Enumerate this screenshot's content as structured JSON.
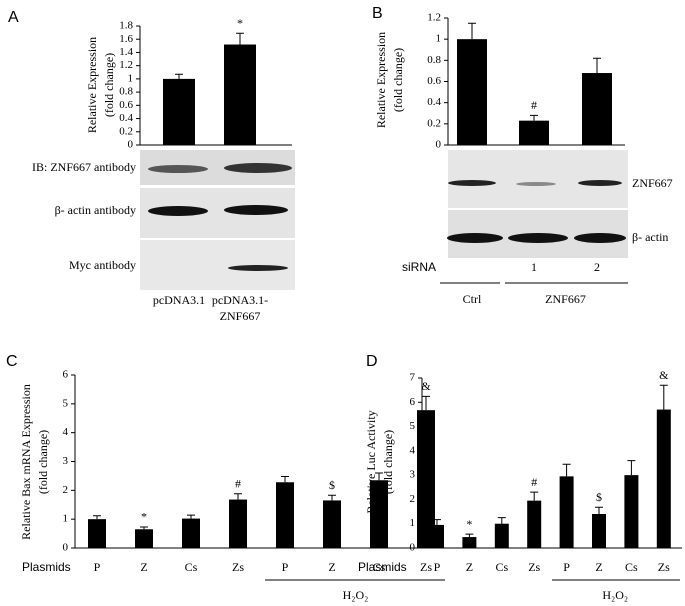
{
  "chart_data": [
    {
      "type": "bar",
      "panel_label": "A",
      "ylabel": [
        "Relative Expression",
        "(fold change)"
      ],
      "categories": [
        "pcDNA3.1",
        "pcDNA3.1-ZNF667"
      ],
      "values": [
        1.0,
        1.52
      ],
      "errors": [
        0.07,
        0.17
      ],
      "ylim": [
        0,
        1.8
      ],
      "yticks": [
        0,
        0.2,
        0.4,
        0.6,
        0.8,
        1,
        1.2,
        1.4,
        1.6,
        1.8
      ],
      "color": "#000000",
      "annotations": [
        {
          "index": 1,
          "text": "*"
        }
      ],
      "blot_labels": [
        "IB: ZNF667 antibody",
        "β- actin antibody",
        "Myc antibody"
      ]
    },
    {
      "type": "bar",
      "panel_label": "B",
      "ylabel": [
        "Relative Expression",
        "(fold change)"
      ],
      "categories": [
        "Ctrl",
        "1",
        "2"
      ],
      "values": [
        1.0,
        0.23,
        0.68
      ],
      "errors": [
        0.15,
        0.05,
        0.14
      ],
      "ylim": [
        0,
        1.2
      ],
      "yticks": [
        0,
        0.2,
        0.4,
        0.6,
        0.8,
        1,
        1.2
      ],
      "color": "#000000",
      "annotations": [
        {
          "index": 1,
          "text": "#"
        }
      ],
      "blot_labels": [
        "ZNF667",
        "β- actin"
      ],
      "row_label": "siRNA",
      "group_label": "ZNF667"
    },
    {
      "type": "bar",
      "panel_label": "C",
      "ylabel": [
        "Relative Bax mRNA Expression",
        "(fold change)"
      ],
      "categories": [
        "P",
        "Z",
        "Cs",
        "Zs",
        "P",
        "Z",
        "Cs",
        "Zs"
      ],
      "values": [
        1.0,
        0.65,
        1.02,
        1.68,
        2.28,
        1.65,
        2.35,
        4.78
      ],
      "errors": [
        0.12,
        0.08,
        0.12,
        0.2,
        0.2,
        0.18,
        0.25,
        0.48
      ],
      "ylim": [
        0,
        6
      ],
      "yticks": [
        0,
        1,
        2,
        3,
        4,
        5,
        6
      ],
      "color": "#000000",
      "annotations": [
        {
          "index": 1,
          "text": "*"
        },
        {
          "index": 3,
          "text": "#"
        },
        {
          "index": 5,
          "text": "$"
        },
        {
          "index": 7,
          "text": "&"
        }
      ],
      "row_label": "Plasmids",
      "group_label": "H₂O₂"
    },
    {
      "type": "bar",
      "panel_label": "D",
      "ylabel": [
        "Relative Luc Activity",
        "(fold change)"
      ],
      "categories": [
        "P",
        "Z",
        "Cs",
        "Zs",
        "P",
        "Z",
        "Cs",
        "Zs"
      ],
      "values": [
        0.95,
        0.45,
        1.0,
        1.95,
        2.95,
        1.4,
        3.0,
        5.7
      ],
      "errors": [
        0.22,
        0.12,
        0.25,
        0.35,
        0.5,
        0.28,
        0.6,
        1.0
      ],
      "ylim": [
        0,
        7
      ],
      "yticks": [
        0,
        1,
        2,
        3,
        4,
        5,
        6,
        7
      ],
      "color": "#000000",
      "annotations": [
        {
          "index": 1,
          "text": "*"
        },
        {
          "index": 3,
          "text": "#"
        },
        {
          "index": 5,
          "text": "$"
        },
        {
          "index": 7,
          "text": "&"
        }
      ],
      "row_label": "Plasmids",
      "group_label": "H₂O₂"
    }
  ]
}
